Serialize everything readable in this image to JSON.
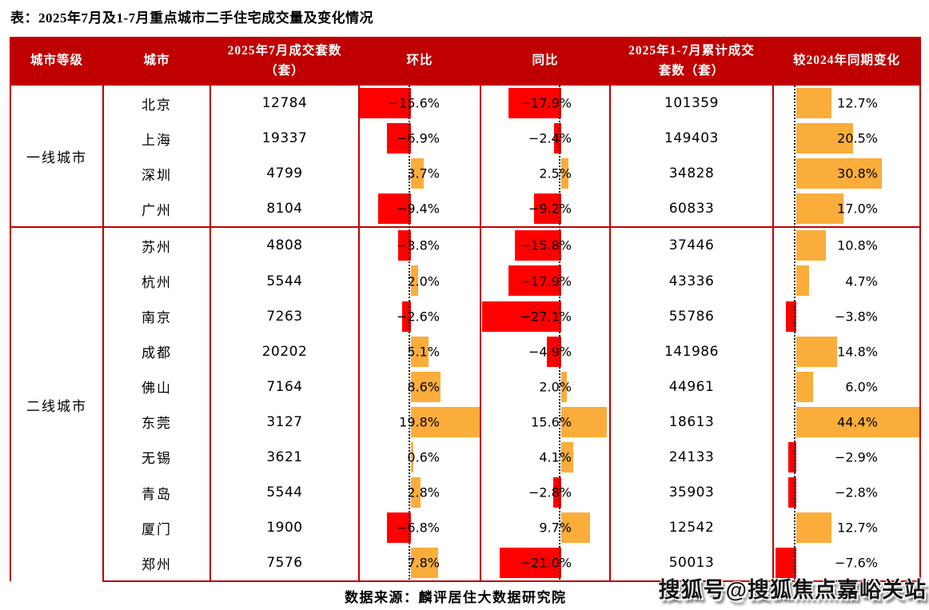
{
  "title": "表：2025年7月及1-7月重点城市二手住宅成交量及变化情况",
  "source_note": "数据来源：麟评居住大数据研究院",
  "watermark": "搜狐号@搜狐焦点嘉峪关站",
  "colors": {
    "header_bg": "#C00000",
    "table_border": "#C00000",
    "bar_negative": "#FF0000",
    "bar_positive": "#FAAD3A",
    "header_text": "#FFFFFF",
    "body_text": "#000000"
  },
  "columns": [
    "城市等级",
    "城市",
    "2025年7月成交套数（套）",
    "环比",
    "同比",
    "2025年1-7月累计成交套数（套）",
    "较2024年同期变化"
  ],
  "chart_data": {
    "type": "table",
    "title": "2025年7月及1-7月重点城市二手住宅成交量及变化情况",
    "columns": [
      "城市等级",
      "城市",
      "2025年7月成交套数（套）",
      "环比",
      "同比",
      "2025年1-7月累计成交套数（套）",
      "较2024年同期变化"
    ],
    "bar_columns_note": "环比/同比/较2024年同期变化 三列为数据条：负值红色条向左，正值橙色条向右，黑色点线为零轴",
    "groups": [
      {
        "tier": "一线城市",
        "rows": [
          {
            "city": "北京",
            "jul_units": 12784,
            "mom_pct": -15.6,
            "yoy_pct": -17.9,
            "cum_units": 101359,
            "vs2024_pct": 12.7
          },
          {
            "city": "上海",
            "jul_units": 19337,
            "mom_pct": -6.9,
            "yoy_pct": -2.4,
            "cum_units": 149403,
            "vs2024_pct": 20.5
          },
          {
            "city": "深圳",
            "jul_units": 4799,
            "mom_pct": 3.7,
            "yoy_pct": 2.5,
            "cum_units": 34828,
            "vs2024_pct": 30.8
          },
          {
            "city": "广州",
            "jul_units": 8104,
            "mom_pct": -9.4,
            "yoy_pct": -9.2,
            "cum_units": 60833,
            "vs2024_pct": 17.0
          }
        ]
      },
      {
        "tier": "二线城市",
        "rows": [
          {
            "city": "苏州",
            "jul_units": 4808,
            "mom_pct": -3.8,
            "yoy_pct": -15.8,
            "cum_units": 37446,
            "vs2024_pct": 10.8
          },
          {
            "city": "杭州",
            "jul_units": 5544,
            "mom_pct": 2.0,
            "yoy_pct": -17.9,
            "cum_units": 43336,
            "vs2024_pct": 4.7
          },
          {
            "city": "南京",
            "jul_units": 7263,
            "mom_pct": -2.6,
            "yoy_pct": -27.1,
            "cum_units": 55786,
            "vs2024_pct": -3.8
          },
          {
            "city": "成都",
            "jul_units": 20202,
            "mom_pct": 5.1,
            "yoy_pct": -4.9,
            "cum_units": 141986,
            "vs2024_pct": 14.8
          },
          {
            "city": "佛山",
            "jul_units": 7164,
            "mom_pct": 8.6,
            "yoy_pct": 2.0,
            "cum_units": 44961,
            "vs2024_pct": 6.0
          },
          {
            "city": "东莞",
            "jul_units": 3127,
            "mom_pct": 19.8,
            "yoy_pct": 15.6,
            "cum_units": 18613,
            "vs2024_pct": 44.4
          },
          {
            "city": "无锡",
            "jul_units": 3621,
            "mom_pct": 0.6,
            "yoy_pct": 4.1,
            "cum_units": 24133,
            "vs2024_pct": -2.9
          },
          {
            "city": "青岛",
            "jul_units": 5544,
            "mom_pct": 2.8,
            "yoy_pct": -2.8,
            "cum_units": 35903,
            "vs2024_pct": -2.8
          },
          {
            "city": "厦门",
            "jul_units": 1900,
            "mom_pct": -6.8,
            "yoy_pct": 9.7,
            "cum_units": 12542,
            "vs2024_pct": 12.7
          },
          {
            "city": "郑州",
            "jul_units": 7576,
            "mom_pct": 7.8,
            "yoy_pct": -21.0,
            "cum_units": 50013,
            "vs2024_pct": -7.6
          }
        ]
      }
    ]
  }
}
